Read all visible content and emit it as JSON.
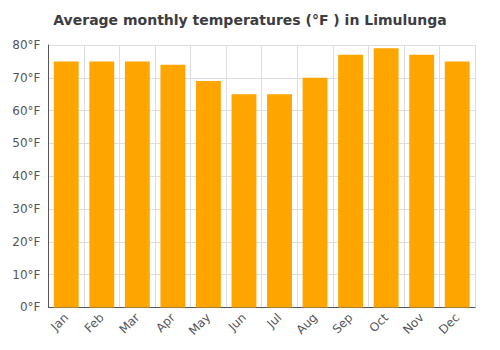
{
  "chart_data": {
    "type": "bar",
    "title": "Average monthly temperatures (°F ) in Limulunga",
    "categories": [
      "Jan",
      "Feb",
      "Mar",
      "Apr",
      "May",
      "Jun",
      "Jul",
      "Aug",
      "Sep",
      "Oct",
      "Nov",
      "Dec"
    ],
    "values": [
      75,
      75,
      75,
      74,
      69,
      65,
      65,
      70,
      77,
      79,
      77,
      75
    ],
    "color": "#FFA500",
    "ylim": [
      0,
      80
    ],
    "yticks": [
      {
        "value": 0,
        "label": "0°F"
      },
      {
        "value": 10,
        "label": "10°F"
      },
      {
        "value": 20,
        "label": "20°F"
      },
      {
        "value": 30,
        "label": "30°F"
      },
      {
        "value": 40,
        "label": "40°F"
      },
      {
        "value": 50,
        "label": "50°F"
      },
      {
        "value": 60,
        "label": "60°F"
      },
      {
        "value": 70,
        "label": "70°F"
      },
      {
        "value": 80,
        "label": "80°F"
      }
    ],
    "grid": true
  }
}
